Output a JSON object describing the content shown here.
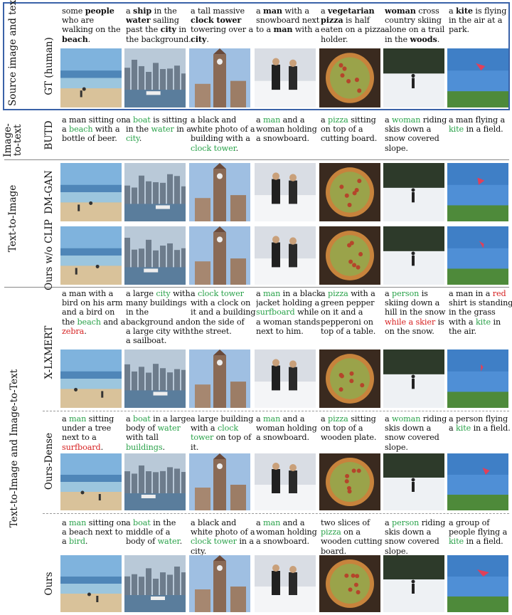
{
  "sections": {
    "source": "Source image and text",
    "image_to_text": "Image-\nto-text",
    "text_to_image": "Text-to-Image",
    "joint": "Text-to-Image and Image-to-Text"
  },
  "row_labels": {
    "gt": "GT (human)",
    "butd": "BUTD",
    "dmgan": "DM-GAN",
    "ours_wo_clip": "Ours w/o CLIP",
    "xlxmert": "X-LXMERT",
    "ours_dense": "Ours-Dense",
    "ours": "Ours"
  },
  "captions": {
    "gt": [
      [
        [
          "some ",
          ""
        ],
        [
          "people",
          "b"
        ],
        [
          " who are walking on the ",
          ""
        ],
        [
          "beach",
          "b"
        ],
        [
          ".",
          ""
        ]
      ],
      [
        [
          "a ",
          ""
        ],
        [
          "ship",
          "b"
        ],
        [
          " in the ",
          ""
        ],
        [
          "water",
          "b"
        ],
        [
          " sailing past the ",
          ""
        ],
        [
          "city",
          "b"
        ],
        [
          " in the background.",
          ""
        ]
      ],
      [
        [
          "a tall massive ",
          ""
        ],
        [
          "clock tower",
          "b"
        ],
        [
          " towering over a ",
          ""
        ],
        [
          "city",
          "b"
        ],
        [
          ".",
          ""
        ]
      ],
      [
        [
          "a ",
          ""
        ],
        [
          "man",
          "b"
        ],
        [
          " with a snowboard next to a ",
          ""
        ],
        [
          "man",
          "b"
        ],
        [
          " with a",
          ""
        ]
      ],
      [
        [
          "a ",
          ""
        ],
        [
          "vegetarian pizza",
          "b"
        ],
        [
          " is half eaten on a pizza holder.",
          ""
        ]
      ],
      [
        [
          "woman",
          "b"
        ],
        [
          " cross country skiing alone on a trail in the ",
          ""
        ],
        [
          "woods",
          "b"
        ],
        [
          ".",
          ""
        ]
      ],
      [
        [
          "a ",
          ""
        ],
        [
          "kite",
          "b"
        ],
        [
          " is flying in the air at a park.",
          ""
        ]
      ]
    ],
    "butd": [
      [
        [
          "a man sitting on a ",
          ""
        ],
        [
          "beach",
          "g"
        ],
        [
          " with a bottle of beer.",
          ""
        ]
      ],
      [
        [
          "a ",
          ""
        ],
        [
          "boat",
          "g"
        ],
        [
          " is sitting in the ",
          ""
        ],
        [
          "water",
          "g"
        ],
        [
          " in a ",
          ""
        ],
        [
          "city",
          "g"
        ],
        [
          ".",
          ""
        ]
      ],
      [
        [
          "a black and white photo of a building with a ",
          ""
        ],
        [
          "clock tower",
          "g"
        ],
        [
          ".",
          ""
        ]
      ],
      [
        [
          "a ",
          ""
        ],
        [
          "man",
          "g"
        ],
        [
          " and a woman holding a snowboard.",
          ""
        ]
      ],
      [
        [
          "a ",
          ""
        ],
        [
          "pizza",
          "g"
        ],
        [
          " sitting on top of a cutting board.",
          ""
        ]
      ],
      [
        [
          "a ",
          ""
        ],
        [
          "woman",
          "g"
        ],
        [
          " riding skis down a snow covered slope.",
          ""
        ]
      ],
      [
        [
          "a man flying a ",
          ""
        ],
        [
          "kite",
          "g"
        ],
        [
          " in a field.",
          ""
        ]
      ]
    ],
    "xlxmert": [
      [
        [
          "a man with a bird on his arm and a bird on the ",
          ""
        ],
        [
          "beach",
          "g"
        ],
        [
          " and a ",
          ""
        ],
        [
          "zebra",
          "r"
        ],
        [
          ".",
          ""
        ]
      ],
      [
        [
          "a large ",
          ""
        ],
        [
          "city",
          "g"
        ],
        [
          " with many buildings in the background and a large city with a sailboat.",
          ""
        ]
      ],
      [
        [
          "a ",
          ""
        ],
        [
          "clock tower",
          "g"
        ],
        [
          " with a clock on it and a building on the side of the street.",
          ""
        ]
      ],
      [
        [
          "a ",
          ""
        ],
        [
          "man",
          "g"
        ],
        [
          " in a black jacket holding a ",
          ""
        ],
        [
          "surfboard",
          "g"
        ],
        [
          " while a woman stands next to him.",
          ""
        ]
      ],
      [
        [
          "a ",
          ""
        ],
        [
          "pizza",
          "g"
        ],
        [
          " with a green pepper on it and a pepperoni on top of a table.",
          ""
        ]
      ],
      [
        [
          "a ",
          ""
        ],
        [
          "person",
          "g"
        ],
        [
          " is skiing down a hill in the snow ",
          ""
        ],
        [
          "while a skier",
          "r"
        ],
        [
          " is on the snow.",
          ""
        ]
      ],
      [
        [
          "a man ",
          ""
        ],
        [
          "in a ",
          ""
        ],
        [
          "red",
          "r"
        ],
        [
          " shirt is standing in the grass with a ",
          ""
        ],
        [
          "kite",
          "g"
        ],
        [
          " in the air.",
          ""
        ]
      ]
    ],
    "ours_dense": [
      [
        [
          "a ",
          ""
        ],
        [
          "man",
          "g"
        ],
        [
          " sitting under a tree next to a ",
          ""
        ],
        [
          "surfboard",
          "r"
        ],
        [
          ".",
          ""
        ]
      ],
      [
        [
          "a ",
          ""
        ],
        [
          "boat",
          "g"
        ],
        [
          " in a large body of ",
          ""
        ],
        [
          "water",
          "g"
        ],
        [
          " with tall ",
          ""
        ],
        [
          "buildings",
          "g"
        ],
        [
          ".",
          ""
        ]
      ],
      [
        [
          "a large building with a ",
          ""
        ],
        [
          "clock tower",
          "g"
        ],
        [
          " on top of it.",
          ""
        ]
      ],
      [
        [
          "a ",
          ""
        ],
        [
          "man",
          "g"
        ],
        [
          " and a woman holding a snowboard.",
          ""
        ]
      ],
      [
        [
          "a ",
          ""
        ],
        [
          "pizza",
          "g"
        ],
        [
          " sitting on top of a wooden plate.",
          ""
        ]
      ],
      [
        [
          "a ",
          ""
        ],
        [
          "woman",
          "g"
        ],
        [
          " riding skis down a snow covered slope.",
          ""
        ]
      ],
      [
        [
          "a person flying a ",
          ""
        ],
        [
          "kite",
          "g"
        ],
        [
          " in a field.",
          ""
        ]
      ]
    ],
    "ours": [
      [
        [
          "a ",
          ""
        ],
        [
          "man",
          "g"
        ],
        [
          " sitting on a beach next to a ",
          ""
        ],
        [
          "bird",
          "g"
        ],
        [
          ".",
          ""
        ]
      ],
      [
        [
          "a ",
          ""
        ],
        [
          "boat",
          "g"
        ],
        [
          " in the middle of a body of ",
          ""
        ],
        [
          "water",
          "g"
        ],
        [
          ".",
          ""
        ]
      ],
      [
        [
          "a black and white photo of a ",
          ""
        ],
        [
          "clock tower",
          "g"
        ],
        [
          " in a city.",
          ""
        ]
      ],
      [
        [
          "a ",
          ""
        ],
        [
          "man",
          "g"
        ],
        [
          " and a woman holding a snowboard.",
          ""
        ]
      ],
      [
        [
          "two slices of ",
          ""
        ],
        [
          "pizza",
          "g"
        ],
        [
          " on a wooden cutting board.",
          ""
        ]
      ],
      [
        [
          "a ",
          ""
        ],
        [
          "person",
          "g"
        ],
        [
          " riding skis down a snow covered slope.",
          ""
        ]
      ],
      [
        [
          "a group of people flying a ",
          ""
        ],
        [
          "kite",
          "g"
        ],
        [
          " in a field.",
          ""
        ]
      ]
    ]
  },
  "scene_kinds": [
    "beach",
    "city",
    "tower",
    "snowpeople",
    "pizza",
    "ski",
    "kite"
  ]
}
